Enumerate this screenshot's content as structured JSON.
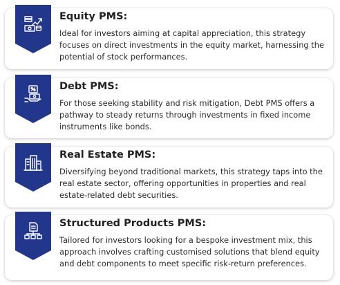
{
  "cards": [
    {
      "icon": "equity-chart-coins-icon",
      "title": "Equity PMS:",
      "description": "Ideal for investors aiming at capital appreciation, this strategy focuses on direct investments in the equity market, harnessing the potential of stock performances."
    },
    {
      "icon": "debt-hand-money-icon",
      "title": "Debt PMS:",
      "description": "For those seeking stability and risk mitigation, Debt PMS offers a pathway to steady returns through investments in fixed income instruments like bonds."
    },
    {
      "icon": "real-estate-buildings-icon",
      "title": "Real Estate PMS:",
      "description": "Diversifying beyond traditional markets, this strategy taps into the real estate sector, offering opportunities in properties and real estate-related debt securities."
    },
    {
      "icon": "structured-products-hierarchy-icon",
      "title": "Structured Products PMS:",
      "description": "Tailored for investors looking for a bespoke investment mix, this approach involves crafting customised solutions that blend equity and debt components to meet specific risk-return preferences."
    }
  ],
  "colors": {
    "ribbon": "#22378b",
    "title_text": "#222222",
    "body_text": "#2b2b2b"
  }
}
